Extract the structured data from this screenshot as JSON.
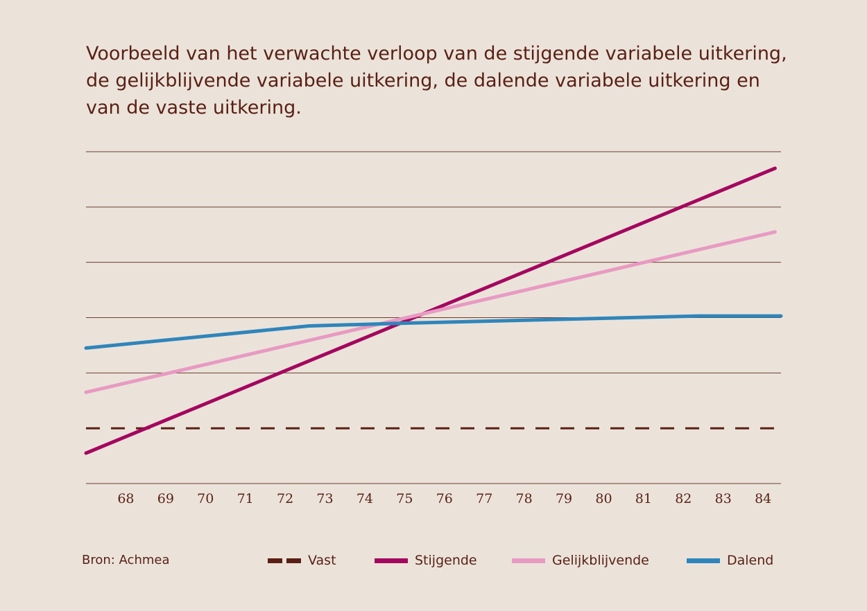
{
  "title_lines": [
    "Voorbeeld van het verwachte verloop van de stijgende variabele uitkering,",
    "de gelijkblijvende variabele uitkering, de dalende variabele uitkering en",
    "van de vaste uitkering."
  ],
  "source": "Bron: Achmea",
  "colors": {
    "background": "#ebe3da",
    "text": "#5a1f14",
    "grid": "#6b3a2e",
    "vast": "#5a1f14",
    "stijgende": "#a4075f",
    "gelijkblijvende": "#e89ac2",
    "dalend": "#2f85bb"
  },
  "chart_data": {
    "type": "line",
    "title": "",
    "xlabel": "",
    "ylabel": "",
    "xlim": [
      67,
      84.45
    ],
    "ylim": [
      0,
      6
    ],
    "grid": true,
    "y_ticks_shown": false,
    "categories": [
      "68",
      "69",
      "70",
      "71",
      "72",
      "73",
      "74",
      "75",
      "76",
      "77",
      "78",
      "79",
      "80",
      "81",
      "82",
      "83",
      "84"
    ],
    "legend_position": "bottom",
    "series": [
      {
        "name": "Vast",
        "style": "dashed",
        "color": "#5a1f14",
        "x": [
          67,
          84.45
        ],
        "y": [
          1.0,
          1.0
        ]
      },
      {
        "name": "Stijgende",
        "style": "solid",
        "color": "#a4075f",
        "x": [
          67,
          84.3
        ],
        "y": [
          0.55,
          5.7
        ]
      },
      {
        "name": "Gelijkblijvende",
        "style": "solid",
        "color": "#e89ac2",
        "x": [
          67,
          84.3
        ],
        "y": [
          1.65,
          4.55
        ]
      },
      {
        "name": "Dalend",
        "style": "solid",
        "color": "#2f85bb",
        "x": [
          67,
          72.6,
          75,
          79,
          82.4,
          84.45
        ],
        "y": [
          2.45,
          2.85,
          2.9,
          2.97,
          3.03,
          3.03
        ]
      }
    ]
  }
}
